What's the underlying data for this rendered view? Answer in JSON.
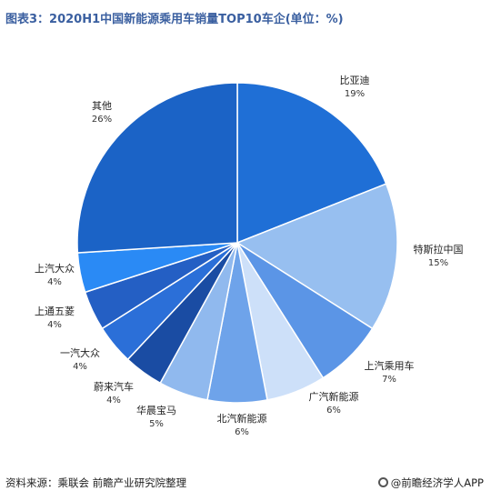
{
  "header": {
    "title": "图表3：2020H1中国新能源乘用车销量TOP10车企(单位：%)"
  },
  "footer": {
    "source": "资料来源：乘联会 前瞻产业研究院整理",
    "brand": "@前瞻经济学人APP"
  },
  "chart_data": {
    "type": "pie",
    "title": "图表3：2020H1中国新能源乘用车销量TOP10车企(单位：%)",
    "slices": [
      {
        "label": "比亚迪",
        "value": 19,
        "value_label": "19%",
        "color": "#1f6fd6"
      },
      {
        "label": "特斯拉中国",
        "value": 15,
        "value_label": "15%",
        "color": "#97bff0"
      },
      {
        "label": "上汽乘用车",
        "value": 7,
        "value_label": "7%",
        "color": "#5b95e6"
      },
      {
        "label": "广汽新能源",
        "value": 6,
        "value_label": "6%",
        "color": "#cde0f9"
      },
      {
        "label": "北汽新能源",
        "value": 6,
        "value_label": "6%",
        "color": "#6ea3ea"
      },
      {
        "label": "华晨宝马",
        "value": 5,
        "value_label": "5%",
        "color": "#90b9ee"
      },
      {
        "label": "蔚来汽车",
        "value": 4,
        "value_label": "4%",
        "color": "#1a4ca3"
      },
      {
        "label": "一汽大众",
        "value": 4,
        "value_label": "4%",
        "color": "#2b6fd8"
      },
      {
        "label": "上通五菱",
        "value": 4,
        "value_label": "4%",
        "color": "#245fc4"
      },
      {
        "label": "上汽大众",
        "value": 4,
        "value_label": "4%",
        "color": "#2a8af5"
      },
      {
        "label": "其他",
        "value": 26,
        "value_label": "26%",
        "color": "#1b63c6"
      }
    ]
  }
}
